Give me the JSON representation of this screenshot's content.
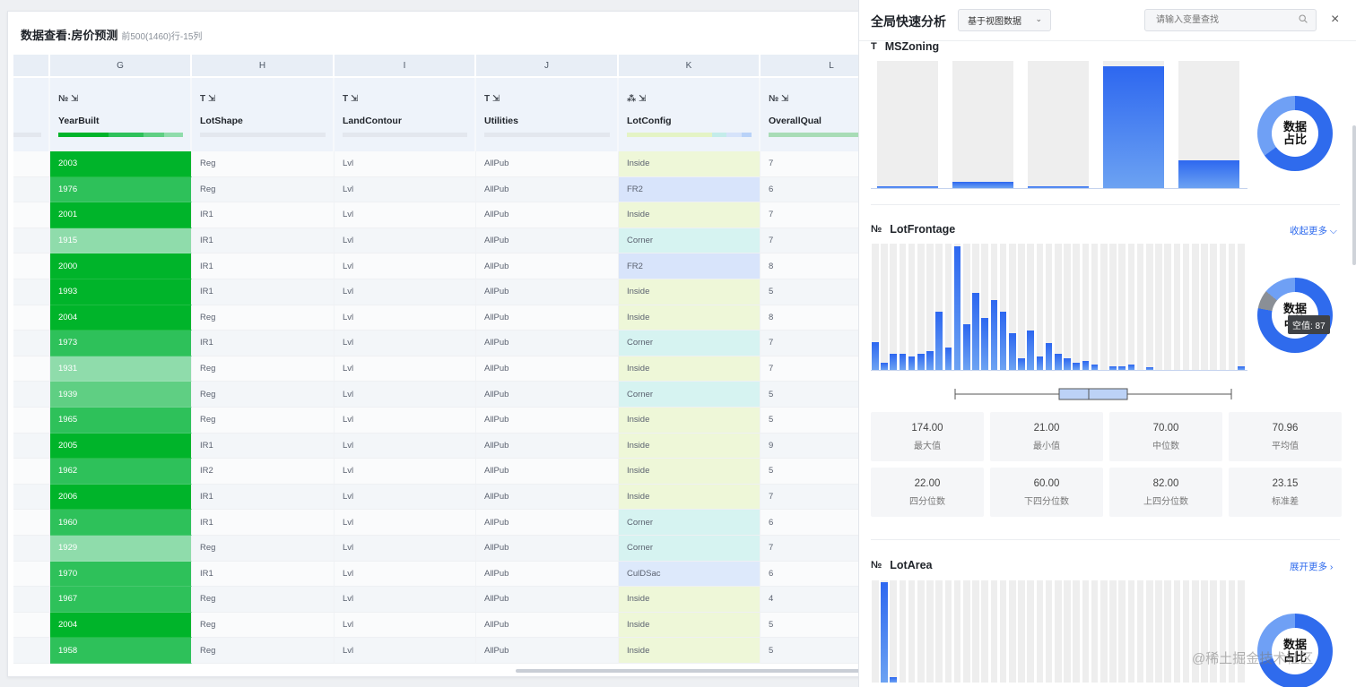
{
  "sheet": {
    "title": "数据查看:房价预测",
    "subtitle": "前500(1460)行-15列",
    "column_letters": [
      "G",
      "H",
      "I",
      "J",
      "K",
      "L"
    ],
    "columns": [
      {
        "icons": "№ ⇲",
        "name": "YearBuilt"
      },
      {
        "icons": "T ⇲",
        "name": "LotShape"
      },
      {
        "icons": "T ⇲",
        "name": "LandContour"
      },
      {
        "icons": "T ⇲",
        "name": "Utilities"
      },
      {
        "icons": "⁂ ⇲",
        "name": "LotConfig"
      },
      {
        "icons": "№ ⇲",
        "name": "OverallQual"
      }
    ],
    "rows": [
      [
        "2003",
        "Reg",
        "Lvl",
        "AllPub",
        "Inside",
        "7"
      ],
      [
        "1976",
        "Reg",
        "Lvl",
        "AllPub",
        "FR2",
        "6"
      ],
      [
        "2001",
        "IR1",
        "Lvl",
        "AllPub",
        "Inside",
        "7"
      ],
      [
        "1915",
        "IR1",
        "Lvl",
        "AllPub",
        "Corner",
        "7"
      ],
      [
        "2000",
        "IR1",
        "Lvl",
        "AllPub",
        "FR2",
        "8"
      ],
      [
        "1993",
        "IR1",
        "Lvl",
        "AllPub",
        "Inside",
        "5"
      ],
      [
        "2004",
        "Reg",
        "Lvl",
        "AllPub",
        "Inside",
        "8"
      ],
      [
        "1973",
        "IR1",
        "Lvl",
        "AllPub",
        "Corner",
        "7"
      ],
      [
        "1931",
        "Reg",
        "Lvl",
        "AllPub",
        "Inside",
        "7"
      ],
      [
        "1939",
        "Reg",
        "Lvl",
        "AllPub",
        "Corner",
        "5"
      ],
      [
        "1965",
        "Reg",
        "Lvl",
        "AllPub",
        "Inside",
        "5"
      ],
      [
        "2005",
        "IR1",
        "Lvl",
        "AllPub",
        "Inside",
        "9"
      ],
      [
        "1962",
        "IR2",
        "Lvl",
        "AllPub",
        "Inside",
        "5"
      ],
      [
        "2006",
        "IR1",
        "Lvl",
        "AllPub",
        "Inside",
        "7"
      ],
      [
        "1960",
        "IR1",
        "Lvl",
        "AllPub",
        "Corner",
        "6"
      ],
      [
        "1929",
        "Reg",
        "Lvl",
        "AllPub",
        "Corner",
        "7"
      ],
      [
        "1970",
        "IR1",
        "Lvl",
        "AllPub",
        "CulDSac",
        "6"
      ],
      [
        "1967",
        "Reg",
        "Lvl",
        "AllPub",
        "Inside",
        "4"
      ],
      [
        "2004",
        "Reg",
        "Lvl",
        "AllPub",
        "Inside",
        "5"
      ],
      [
        "1958",
        "Reg",
        "Lvl",
        "AllPub",
        "Inside",
        "5"
      ]
    ],
    "colors": {
      "year_new": "#00b42a",
      "year_mid": "#2ec15a",
      "year_old": "#5fcf83",
      "year_oldest": "#8fdcab",
      "lotconfig_inside": "#eef7d8",
      "lotconfig_fr2": "#d8e4fb",
      "lotconfig_corner": "#d6f3f1",
      "lotconfig_culdsac": "#dde9fb"
    }
  },
  "panel": {
    "title": "全局快速分析",
    "view_select": "基于视图数据",
    "search_placeholder": "请输入变量查找",
    "close_icon": "×",
    "sections": {
      "mszoning": {
        "icon": "T",
        "name": "MSZoning",
        "category_shares": [
          0.01,
          0.05,
          0.01,
          0.96,
          0.22
        ],
        "donut_label": "数据占比"
      },
      "lotfrontage": {
        "icon": "№",
        "name": "LotFrontage",
        "toggle": "收起更多 ⌵",
        "histogram": [
          0.22,
          0.06,
          0.13,
          0.13,
          0.11,
          0.13,
          0.15,
          0.46,
          0.18,
          0.98,
          0.36,
          0.61,
          0.41,
          0.55,
          0.46,
          0.29,
          0.09,
          0.31,
          0.11,
          0.21,
          0.13,
          0.09,
          0.06,
          0.07,
          0.04,
          0.0,
          0.03,
          0.03,
          0.04,
          0.0,
          0.02,
          0.0,
          0.0,
          0.0,
          0.0,
          0.0,
          0.0,
          0.0,
          0.0,
          0.0,
          0.03
        ],
        "donut_label": "数据占比",
        "null_tooltip": "空值: 87",
        "stats": [
          {
            "value": "174.00",
            "label": "最大值"
          },
          {
            "value": "21.00",
            "label": "最小值"
          },
          {
            "value": "70.00",
            "label": "中位数"
          },
          {
            "value": "70.96",
            "label": "平均值"
          },
          {
            "value": "22.00",
            "label": "四分位数"
          },
          {
            "value": "60.00",
            "label": "下四分位数"
          },
          {
            "value": "82.00",
            "label": "上四分位数"
          },
          {
            "value": "23.15",
            "label": "标准差"
          }
        ]
      },
      "lotarea": {
        "icon": "№",
        "name": "LotArea",
        "toggle": "展开更多 ›",
        "histogram": [
          0.0,
          0.98,
          0.05,
          0,
          0,
          0,
          0,
          0,
          0,
          0,
          0,
          0,
          0,
          0,
          0,
          0,
          0,
          0,
          0,
          0,
          0,
          0,
          0,
          0,
          0,
          0,
          0,
          0,
          0,
          0,
          0,
          0,
          0,
          0,
          0,
          0,
          0,
          0,
          0,
          0,
          0
        ],
        "donut_label": "数据占比"
      }
    }
  },
  "watermark": "@稀土掘金技术社区"
}
